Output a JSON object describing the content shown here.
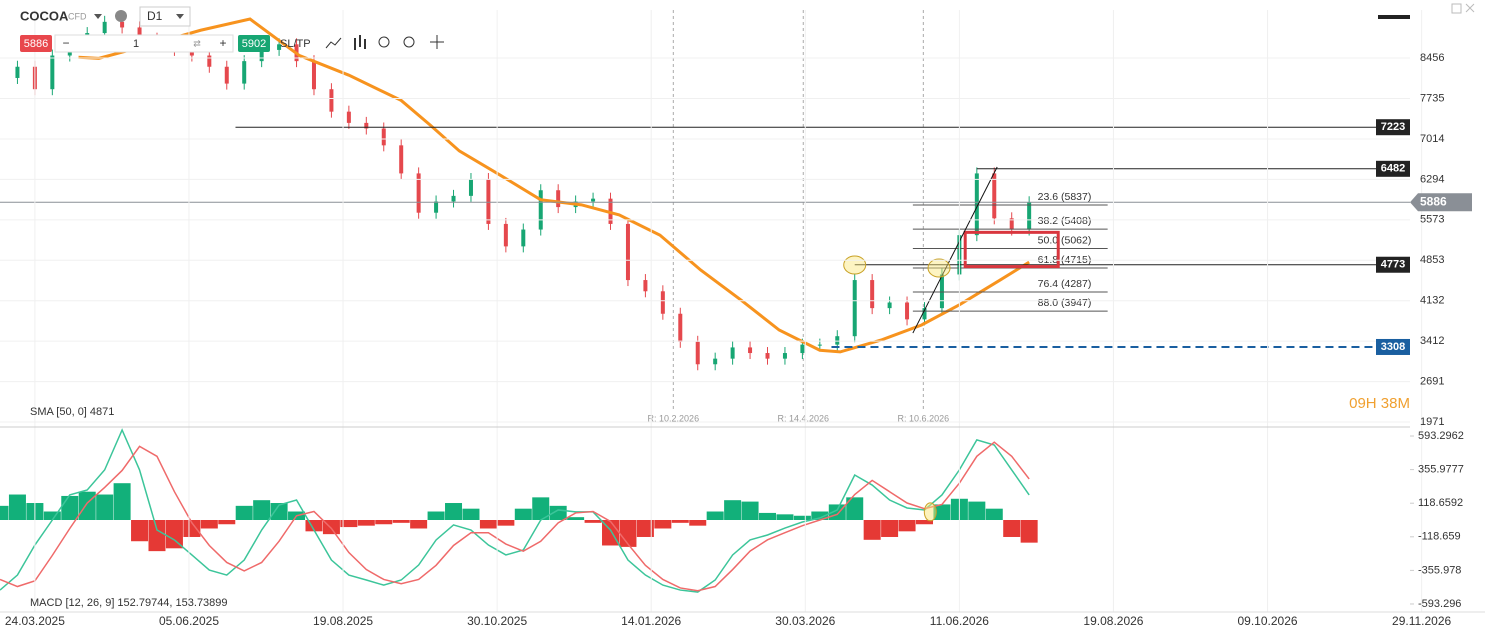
{
  "toolbar": {
    "symbol": "COCOA",
    "instrument_type": "CFD",
    "timeframe": "D1",
    "sell_price": 5886,
    "quantity": 1,
    "buy_price": 5902,
    "sl_tp": "SL/TP"
  },
  "chart_data": [
    {
      "type": "candlestick",
      "legend": "SMA [50, 0] 4871",
      "countdown": "09H 38M",
      "xlim": [
        0,
        485
      ],
      "ylim": [
        1918,
        9311
      ],
      "yticks": [
        8456,
        7735,
        7014,
        6294,
        5573,
        4853,
        4132,
        3412,
        2691,
        1971
      ],
      "grid": true,
      "series": [
        {
          "up_color": "#17a673",
          "down_color": "#e5484d",
          "x": [
            0,
            6,
            12,
            18,
            24,
            30,
            36,
            42,
            48,
            54,
            60,
            66,
            72,
            78,
            84,
            90,
            96,
            102,
            108,
            114,
            120,
            126,
            132,
            138,
            144,
            150,
            156,
            162,
            168,
            174,
            180,
            186,
            192,
            198,
            204,
            210,
            216,
            222,
            228,
            234,
            240,
            246,
            252,
            258,
            264,
            270,
            276,
            282,
            288,
            294,
            300,
            306,
            312,
            318,
            324,
            330,
            336,
            342,
            348,
            354
          ],
          "values": [
            8100,
            8300,
            7900,
            8500,
            8700,
            8900,
            9100,
            9000,
            8800,
            8700,
            8600,
            8500,
            8300,
            8000,
            8400,
            8600,
            8700,
            8400,
            7900,
            7500,
            7300,
            7200,
            6900,
            6400,
            5700,
            5900,
            6000,
            6300,
            5500,
            5100,
            5400,
            6100,
            5800,
            5900,
            5950,
            5500,
            4500,
            4300,
            3900,
            3400,
            3000,
            3100,
            3300,
            3200,
            3100,
            3200,
            3350,
            3350,
            3500,
            4500,
            4000,
            4100,
            3800,
            4000,
            4600,
            5300,
            6400,
            5600,
            5400,
            5886
          ]
        },
        {
          "color": "#f7931e",
          "x": [
            27,
            34,
            52,
            69,
            86,
            103,
            120,
            138,
            148,
            158,
            172,
            186,
            200,
            213,
            227,
            241,
            255,
            268,
            282,
            289,
            303,
            317,
            330,
            344,
            354
          ],
          "values": [
            8470,
            8450,
            8700,
            8950,
            9150,
            8500,
            8150,
            7700,
            7260,
            6800,
            6370,
            5930,
            5840,
            5660,
            5300,
            4680,
            4140,
            3610,
            3250,
            3220,
            3430,
            3700,
            4060,
            4500,
            4820
          ]
        }
      ],
      "levels": [
        {
          "value": 7223,
          "start": 81,
          "color": "#222222"
        },
        {
          "value": 6482,
          "start": 336,
          "color": "#222222"
        },
        {
          "value": 4773,
          "start": 294,
          "color": "#222222"
        },
        {
          "value": 3308,
          "start": 286,
          "color": "#1a5fa0",
          "dashed": true
        }
      ],
      "current_price": {
        "value": 5886,
        "color": "#8a8f96"
      },
      "fibonacci": {
        "start": 314,
        "end": 381,
        "levels": [
          {
            "value": 5837,
            "label": "23.6 (5837)"
          },
          {
            "value": 5408,
            "label": "38.2 (5408)"
          },
          {
            "value": 5062,
            "label": "50.0 (5062)"
          },
          {
            "value": 4715,
            "label": "61.8 (4715)"
          },
          {
            "value": 4287,
            "label": "76.4 (4287)"
          },
          {
            "value": 3947,
            "label": "88.0 (3947)"
          }
        ]
      },
      "markers": [
        {
          "x": 231.6,
          "label": "R: 10.2.2026"
        },
        {
          "x": 276.3,
          "label": "R: 14.4.2026"
        },
        {
          "x": 317.6,
          "label": "R: 10.6.2026"
        }
      ],
      "trendline": {
        "x": [
          314,
          343
        ],
        "values": [
          3556,
          6514
        ]
      },
      "highlight_box": {
        "x": [
          332,
          364
        ],
        "values": [
          4740,
          5350
        ],
        "color": "#d9363e"
      },
      "circles": [
        {
          "x": 294,
          "value": 4768
        },
        {
          "x": 323,
          "value": 4715
        }
      ]
    },
    {
      "type": "macd",
      "legend": "MACD [12, 26, 9] 152.79744, 153.73899",
      "xlim": [
        0,
        485
      ],
      "ylim": [
        -650,
        650
      ],
      "xticks": [
        {
          "value": 12,
          "label": "24.03.2025"
        },
        {
          "value": 65,
          "label": "05.06.2025"
        },
        {
          "value": 118,
          "label": "19.08.2025"
        },
        {
          "value": 171,
          "label": "30.10.2025"
        },
        {
          "value": 224,
          "label": "14.01.2026"
        },
        {
          "value": 277,
          "label": "30.03.2026"
        },
        {
          "value": 330,
          "label": "11.06.2026"
        },
        {
          "value": 383,
          "label": "19.08.2026"
        },
        {
          "value": 436,
          "label": "09.10.2026"
        },
        {
          "value": 489,
          "label": "29.11.2026"
        }
      ],
      "yticks": [
        593.2962,
        355.9777,
        118.6592,
        -118.659,
        -355.978,
        -593.296
      ],
      "x": [
        0,
        6,
        12,
        18,
        24,
        30,
        36,
        42,
        48,
        54,
        60,
        66,
        72,
        78,
        84,
        90,
        96,
        102,
        108,
        114,
        120,
        126,
        132,
        138,
        144,
        150,
        156,
        162,
        168,
        174,
        180,
        186,
        192,
        198,
        204,
        210,
        216,
        222,
        228,
        234,
        240,
        246,
        252,
        258,
        264,
        270,
        276,
        282,
        288,
        294,
        300,
        306,
        312,
        318,
        324,
        330,
        336,
        342,
        348,
        354
      ],
      "series": [
        {
          "type": "bar",
          "color": "#12b07a",
          "negative_color": "#e53935",
          "values": [
            100,
            180,
            120,
            60,
            170,
            200,
            180,
            260,
            -150,
            -220,
            -200,
            -120,
            -60,
            -30,
            100,
            140,
            120,
            60,
            -80,
            -100,
            -50,
            -40,
            -30,
            -20,
            -60,
            60,
            120,
            80,
            -60,
            -40,
            80,
            160,
            100,
            20,
            -20,
            -180,
            -190,
            -120,
            -60,
            -20,
            -40,
            60,
            140,
            130,
            50,
            40,
            30,
            60,
            110,
            160,
            -140,
            -120,
            -80,
            -30,
            110,
            150,
            130,
            80,
            -120,
            -160
          ]
        },
        {
          "type": "line",
          "color": "#3cc59a",
          "values": [
            -495,
            -389,
            -177,
            0,
            177,
            212,
            354,
            636,
            354,
            -71,
            -141,
            -247,
            -354,
            -389,
            -283,
            -71,
            106,
            141,
            -71,
            -283,
            -389,
            -424,
            -460,
            -424,
            -318,
            -141,
            -35,
            -71,
            -177,
            -247,
            -212,
            0,
            71,
            57,
            57,
            -71,
            -283,
            -389,
            -460,
            -495,
            -509,
            -424,
            -247,
            -141,
            -106,
            -57,
            -14,
            14,
            71,
            318,
            247,
            141,
            85,
            71,
            177,
            354,
            566,
            530,
            354,
            177
          ]
        },
        {
          "type": "line",
          "color": "#ef6a6a",
          "values": [
            -420,
            -470,
            -430,
            -250,
            -60,
            120,
            230,
            350,
            520,
            450,
            200,
            -20,
            -180,
            -300,
            -360,
            -300,
            -150,
            30,
            60,
            -60,
            -230,
            -350,
            -420,
            -450,
            -420,
            -320,
            -180,
            -90,
            -90,
            -170,
            -220,
            -150,
            -20,
            50,
            60,
            -10,
            -170,
            -320,
            -420,
            -480,
            -500,
            -470,
            -350,
            -220,
            -140,
            -90,
            -40,
            0,
            40,
            180,
            280,
            200,
            120,
            80,
            110,
            260,
            450,
            550,
            450,
            290
          ]
        }
      ],
      "circles": [
        {
          "x": 320,
          "value": 57
        }
      ]
    }
  ]
}
